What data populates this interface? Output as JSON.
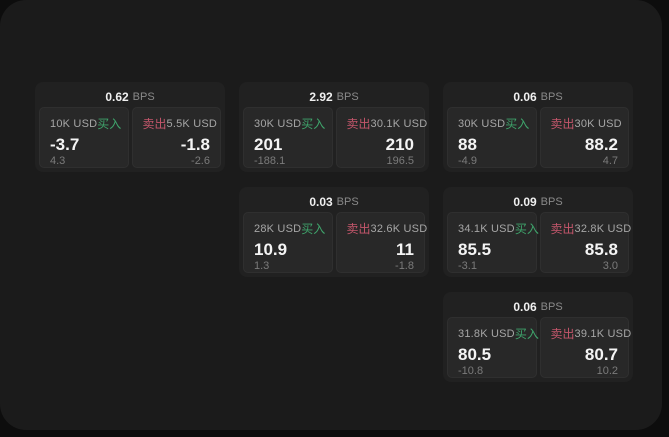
{
  "labels": {
    "buy": "买入",
    "sell": "卖出",
    "bps_unit": "BPS"
  },
  "colors": {
    "buy_green": "#3fa56c",
    "sell_red": "#c4566b",
    "page_bg": "#0d0d0d",
    "window_bg": "#1b1b1b",
    "card_bg": "#212121",
    "tile_bg": "#282828"
  },
  "cards": [
    {
      "col": 1,
      "row": 1,
      "bps": "0.62",
      "buy": {
        "size": "10K USD",
        "price": "-3.7",
        "delta": "4.3"
      },
      "sell": {
        "size": "5.5K USD",
        "price": "-1.8",
        "delta": "-2.6"
      }
    },
    {
      "col": 2,
      "row": 1,
      "bps": "2.92",
      "buy": {
        "size": "30K USD",
        "price": "201",
        "delta": "-188.1"
      },
      "sell": {
        "size": "30.1K USD",
        "price": "210",
        "delta": "196.5"
      }
    },
    {
      "col": 3,
      "row": 1,
      "bps": "0.06",
      "buy": {
        "size": "30K USD",
        "price": "88",
        "delta": "-4.9"
      },
      "sell": {
        "size": "30K USD",
        "price": "88.2",
        "delta": "4.7"
      }
    },
    {
      "col": 2,
      "row": 2,
      "bps": "0.03",
      "buy": {
        "size": "28K USD",
        "price": "10.9",
        "delta": "1.3"
      },
      "sell": {
        "size": "32.6K USD",
        "price": "11",
        "delta": "-1.8"
      }
    },
    {
      "col": 3,
      "row": 2,
      "bps": "0.09",
      "buy": {
        "size": "34.1K USD",
        "price": "85.5",
        "delta": "-3.1"
      },
      "sell": {
        "size": "32.8K USD",
        "price": "85.8",
        "delta": "3.0"
      }
    },
    {
      "col": 3,
      "row": 3,
      "bps": "0.06",
      "buy": {
        "size": "31.8K USD",
        "price": "80.5",
        "delta": "-10.8"
      },
      "sell": {
        "size": "39.1K USD",
        "price": "80.7",
        "delta": "10.2"
      }
    }
  ]
}
